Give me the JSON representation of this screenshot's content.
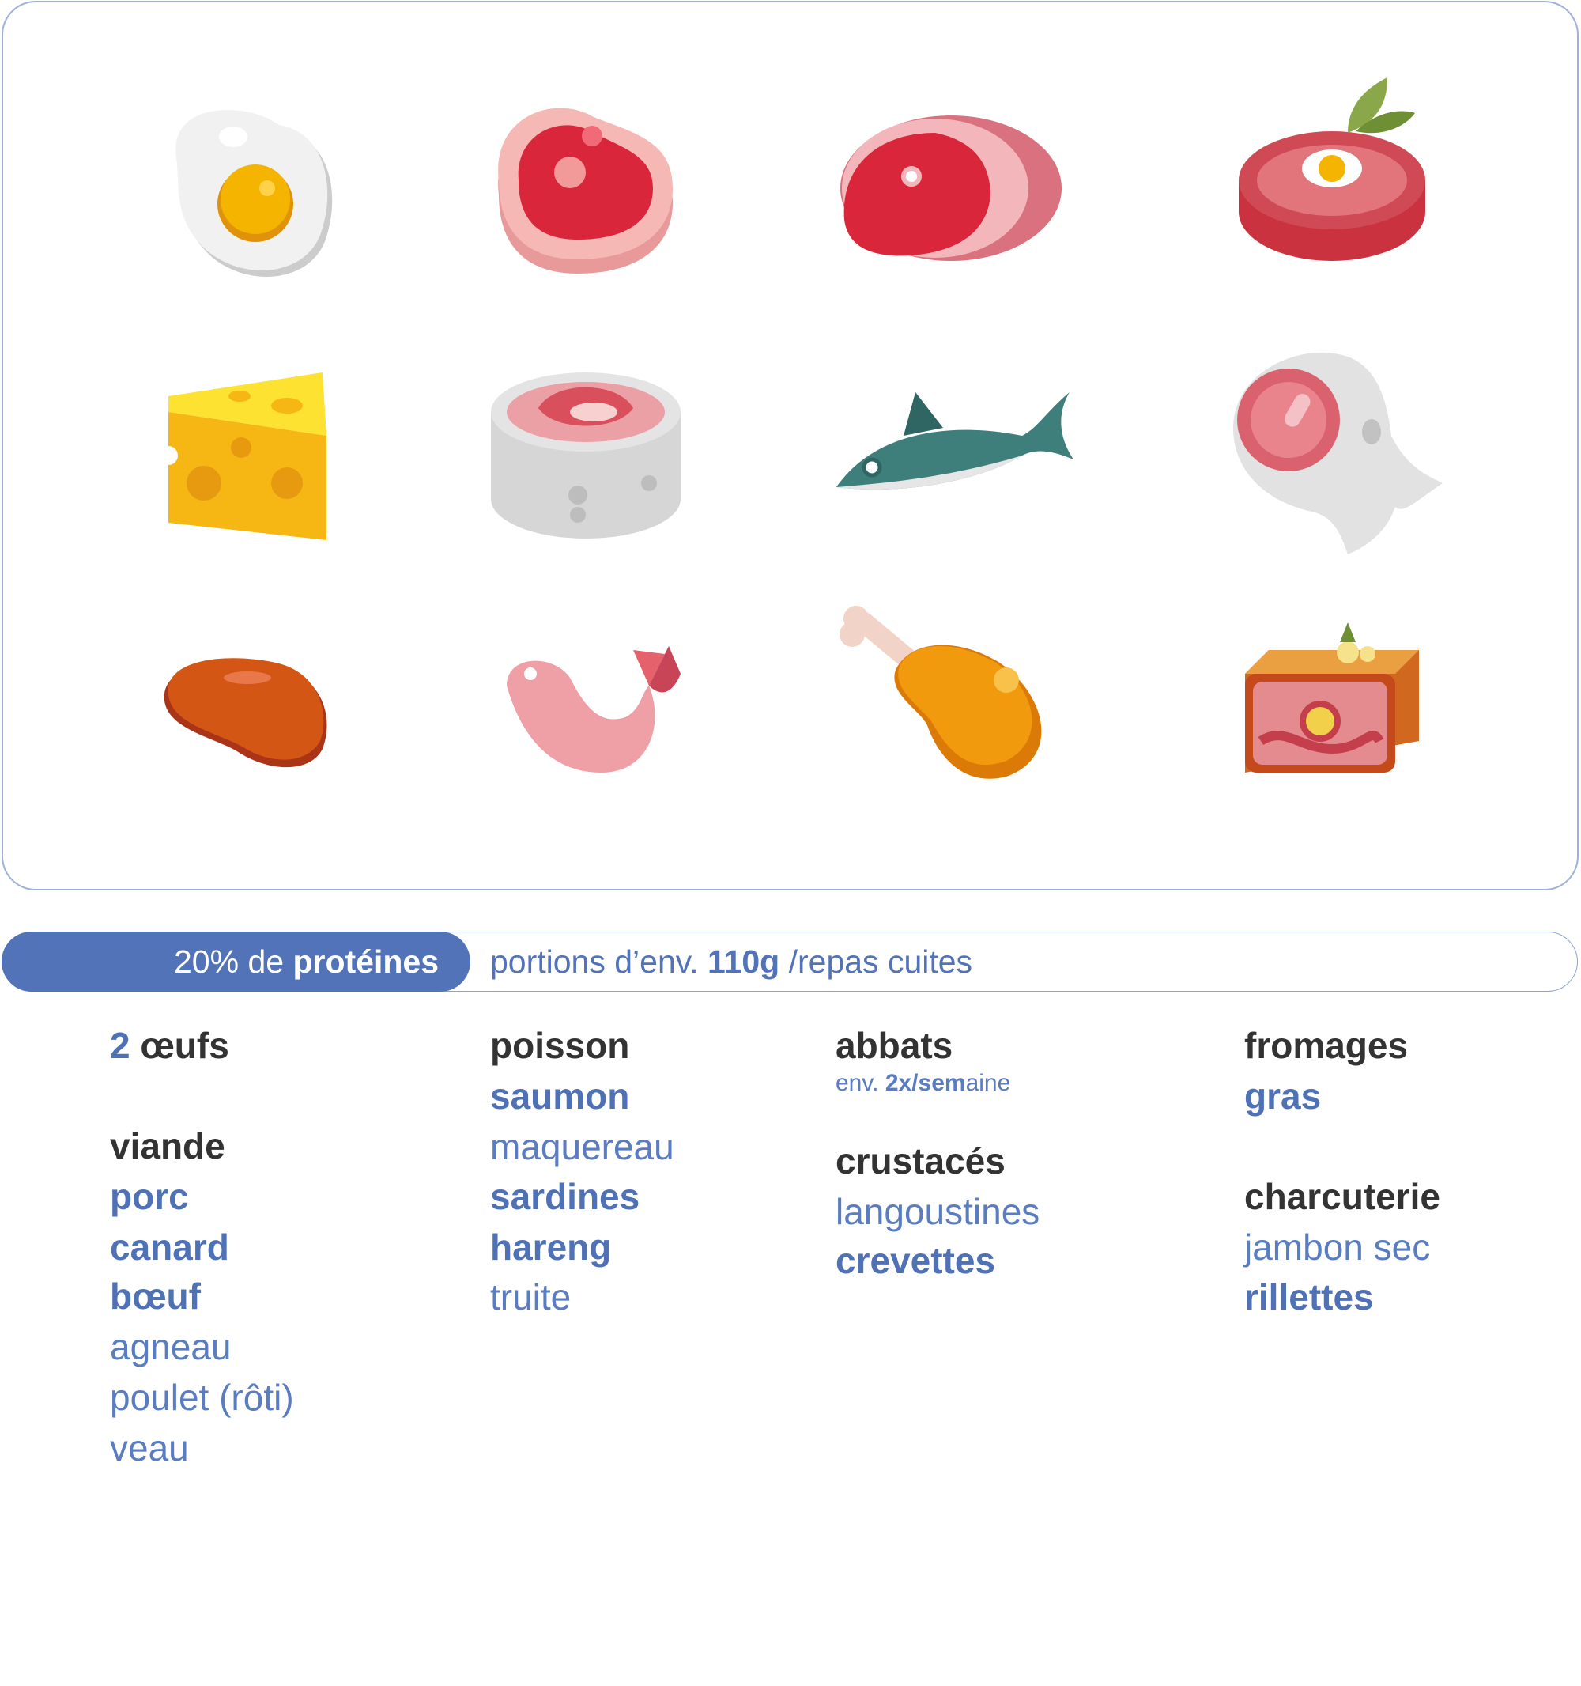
{
  "banner": {
    "badge": [
      "20% de ",
      "protéines"
    ],
    "text": [
      "portions d’env. ",
      "110g",
      " /repas cuites"
    ]
  },
  "columns": [
    {
      "items": [
        [
          "2",
          " œufs"
        ],
        [
          "viande"
        ],
        [
          "porc"
        ],
        [
          "canard"
        ],
        [
          "bœuf"
        ],
        [
          "agneau"
        ],
        [
          "poulet (rôti)"
        ],
        [
          "veau"
        ]
      ]
    },
    {
      "items": [
        [
          "poisson"
        ],
        [
          "saumon"
        ],
        [
          "maquereau"
        ],
        [
          "sardines"
        ],
        [
          "hareng"
        ],
        [
          "truite"
        ]
      ]
    },
    {
      "items": [
        [
          "abbats"
        ],
        [
          "env. ",
          "2x/sem",
          "aine"
        ],
        [
          "crustacés"
        ],
        [
          "langoustines"
        ],
        [
          "crevettes"
        ]
      ]
    },
    {
      "items": [
        [
          "fromages"
        ],
        [
          "gras"
        ],
        [
          "charcuterie"
        ],
        [
          "jambon sec"
        ],
        [
          "rillettes"
        ]
      ]
    }
  ]
}
